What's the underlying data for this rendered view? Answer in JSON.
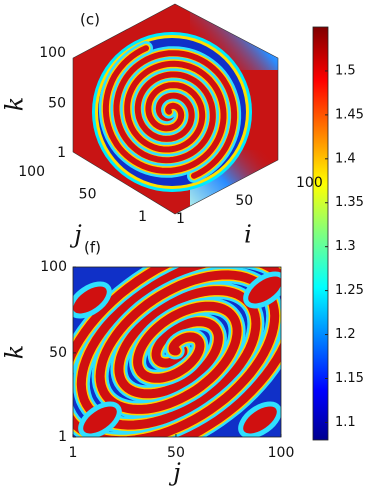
{
  "panels": [
    {
      "label": "(c)",
      "axes": [
        {
          "label": "k",
          "ticks": [
            1,
            50,
            100
          ]
        },
        {
          "label": "j",
          "ticks": [
            1,
            50,
            100
          ]
        },
        {
          "label": "i",
          "ticks": [
            1,
            50,
            100
          ]
        }
      ]
    },
    {
      "label": "(f)",
      "xlabel": "j",
      "ylabel": "k",
      "xlim": [
        1,
        100
      ],
      "ylim": [
        1,
        100
      ],
      "xticks": [
        1,
        50,
        100
      ],
      "yticks": [
        1,
        50,
        100
      ]
    }
  ],
  "colorbar": {
    "lim": [
      1.08,
      1.55
    ],
    "ticks": [
      1.1,
      1.15,
      1.2,
      1.25,
      1.3,
      1.35,
      1.4,
      1.45,
      1.5
    ],
    "colormap": "jet"
  }
}
